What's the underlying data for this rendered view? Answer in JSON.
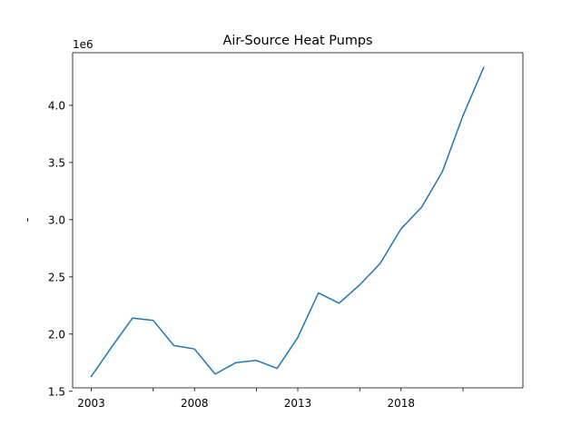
{
  "chart_data": {
    "type": "line",
    "title": "Air-Source Heat Pumps",
    "xlabel": "",
    "ylabel": "-",
    "y_offset_label": "1e6",
    "grid": false,
    "legend": "none",
    "xlim": [
      2002.1,
      2023.9
    ],
    "ylim": [
      1.53,
      4.46
    ],
    "x_ticks": [
      2003,
      2008,
      2013,
      2018
    ],
    "x_minor_ticks": [
      2006,
      2011,
      2016,
      2021
    ],
    "y_ticks": [
      1.5,
      2.0,
      2.5,
      3.0,
      3.5,
      4.0
    ],
    "y_tick_labels": [
      "1.5",
      "2.0",
      "2.5",
      "3.0",
      "3.5",
      "4.0"
    ],
    "series": [
      {
        "color": "#1f77b4",
        "x": [
          2003,
          2004,
          2005,
          2006,
          2007,
          2008,
          2009,
          2010,
          2011,
          2012,
          2013,
          2014,
          2015,
          2016,
          2017,
          2018,
          2019,
          2020,
          2021,
          2022
        ],
        "values": [
          1.63,
          1.89,
          2.14,
          2.12,
          1.9,
          1.87,
          1.65,
          1.75,
          1.77,
          1.7,
          1.97,
          2.36,
          2.27,
          2.43,
          2.62,
          2.92,
          3.11,
          3.42,
          3.91,
          4.33
        ]
      }
    ]
  }
}
